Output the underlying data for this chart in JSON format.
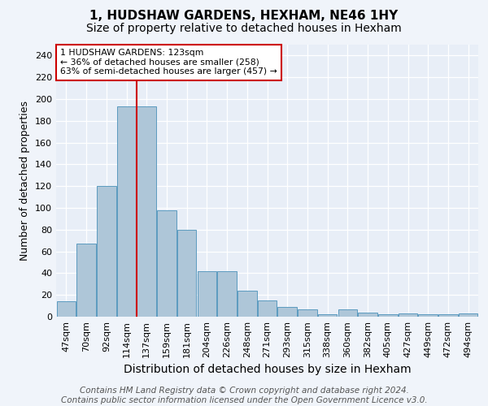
{
  "title": "1, HUDSHAW GARDENS, HEXHAM, NE46 1HY",
  "subtitle": "Size of property relative to detached houses in Hexham",
  "xlabel": "Distribution of detached houses by size in Hexham",
  "ylabel": "Number of detached properties",
  "bin_labels": [
    "47sqm",
    "70sqm",
    "92sqm",
    "114sqm",
    "137sqm",
    "159sqm",
    "181sqm",
    "204sqm",
    "226sqm",
    "248sqm",
    "271sqm",
    "293sqm",
    "315sqm",
    "338sqm",
    "360sqm",
    "382sqm",
    "405sqm",
    "427sqm",
    "449sqm",
    "472sqm",
    "494sqm"
  ],
  "bar_heights": [
    14,
    67,
    120,
    193,
    193,
    98,
    80,
    42,
    42,
    24,
    15,
    9,
    7,
    2,
    7,
    4,
    2,
    3,
    2,
    2,
    3
  ],
  "bar_color": "#aec6d8",
  "bar_edge_color": "#5b9bbf",
  "property_label": "1 HUDSHAW GARDENS: 123sqm",
  "annotation_line1": "← 36% of detached houses are smaller (258)",
  "annotation_line2": "63% of semi-detached houses are larger (457) →",
  "vline_color": "#cc0000",
  "vline_bin_index": 3,
  "annotation_box_color": "#cc0000",
  "yticks": [
    0,
    20,
    40,
    60,
    80,
    100,
    120,
    140,
    160,
    180,
    200,
    220,
    240
  ],
  "ylim": [
    0,
    250
  ],
  "background_color": "#f0f4fa",
  "plot_bg_color": "#e8eef7",
  "footer": "Contains HM Land Registry data © Crown copyright and database right 2024.\nContains public sector information licensed under the Open Government Licence v3.0.",
  "title_fontsize": 11,
  "subtitle_fontsize": 10,
  "xlabel_fontsize": 10,
  "ylabel_fontsize": 9,
  "tick_fontsize": 8,
  "footer_fontsize": 7.5
}
